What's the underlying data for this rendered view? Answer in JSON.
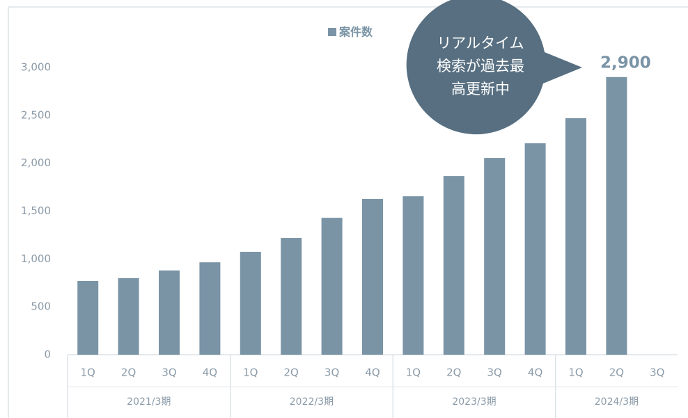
{
  "chart_data": {
    "type": "bar",
    "legend": "案件数",
    "color": "#7a94a6",
    "groups": [
      {
        "label": "2021/3期",
        "categories": [
          "1Q",
          "2Q",
          "3Q",
          "4Q"
        ]
      },
      {
        "label": "2022/3期",
        "categories": [
          "1Q",
          "2Q",
          "3Q",
          "4Q"
        ]
      },
      {
        "label": "2023/3期",
        "categories": [
          "1Q",
          "2Q",
          "3Q",
          "4Q"
        ]
      },
      {
        "label": "2024/3期",
        "categories": [
          "1Q",
          "2Q",
          "3Q"
        ]
      }
    ],
    "values": [
      770,
      800,
      880,
      965,
      1075,
      1220,
      1430,
      1627,
      1655,
      1866,
      2055,
      2208,
      2470,
      2900,
      null
    ],
    "value_labels": [
      null,
      null,
      null,
      null,
      null,
      null,
      null,
      null,
      null,
      null,
      null,
      null,
      null,
      "2,900",
      null
    ],
    "ylim": [
      0,
      3000
    ],
    "yticks": [
      0,
      500,
      {
        "value": 1000,
        "label": "1,000"
      },
      {
        "value": 1500,
        "label": "1,500"
      },
      {
        "value": 2000,
        "label": "2,000"
      },
      {
        "value": 2500,
        "label": "2,500"
      },
      {
        "value": 3000,
        "label": "3,000"
      }
    ],
    "grid": false,
    "annotation": [
      "リアルタイム",
      "検索が過去最",
      "高更新中"
    ]
  }
}
